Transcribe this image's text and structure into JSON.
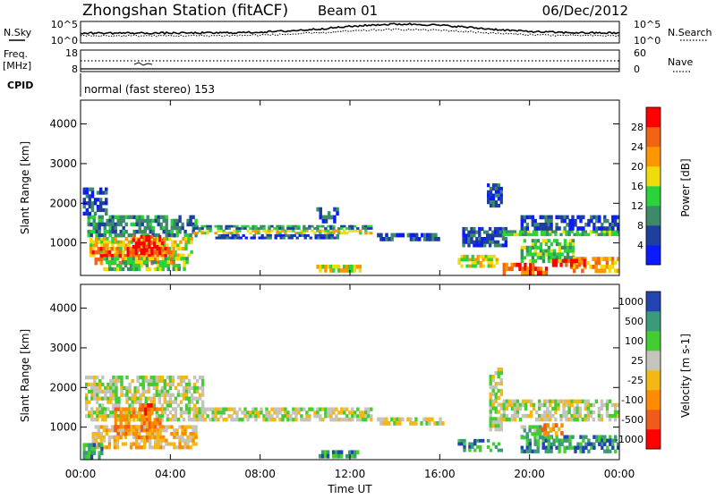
{
  "header": {
    "title": "Zhongshan Station (fitACF)",
    "beam": "Beam 01",
    "date": "06/Dec/2012"
  },
  "strip_noise": {
    "left_label": "N.Sky",
    "right_label": "N.Search",
    "left_ticks": [
      "10^5",
      "10^0"
    ],
    "right_ticks": [
      "10^5",
      "10^0"
    ]
  },
  "strip_freq": {
    "left_label_1": "Freq.",
    "left_label_2": "[MHz]",
    "right_label": "Nave",
    "left_ticks": [
      "18",
      "8"
    ],
    "right_ticks": [
      "60",
      "0"
    ]
  },
  "cpid": {
    "label": "CPID",
    "mode": "normal (fast stereo) 153"
  },
  "chart_data": [
    {
      "type": "heatmap",
      "name": "power",
      "ylabel": "Slant Range [km]",
      "ytick_labels": [
        "1000",
        "2000",
        "3000",
        "4000"
      ],
      "yticks": [
        1000,
        2000,
        3000,
        4000
      ],
      "ylim": [
        180,
        4600
      ],
      "xlim": [
        0,
        24
      ],
      "colorbar_label": "Power [dB]",
      "colorbar_ticks": [
        "4",
        "8",
        "12",
        "16",
        "20",
        "24",
        "28"
      ],
      "colors": [
        "#0a1cff",
        "#1f3fa0",
        "#3c8a6a",
        "#2bd33b",
        "#f0dc0a",
        "#ff9600",
        "#f06414",
        "#ff0000"
      ],
      "blobs": [
        {
          "t0": 0.3,
          "t1": 5.2,
          "r0": 1150,
          "r1": 1700,
          "level": 2
        },
        {
          "t0": 0.4,
          "t1": 5.0,
          "r0": 650,
          "r1": 1150,
          "level": 4
        },
        {
          "t0": 0.5,
          "t1": 4.2,
          "r0": 450,
          "r1": 900,
          "level": 6
        },
        {
          "t0": 2.3,
          "t1": 3.7,
          "r0": 700,
          "r1": 1200,
          "level": 7
        },
        {
          "t0": 0.1,
          "t1": 1.2,
          "r0": 1700,
          "r1": 2400,
          "level": 1
        },
        {
          "t0": 1.0,
          "t1": 4.8,
          "r0": 300,
          "r1": 650,
          "level": 3
        },
        {
          "t0": 5.0,
          "t1": 13.0,
          "r0": 1220,
          "r1": 1340,
          "level": 4
        },
        {
          "t0": 5.0,
          "t1": 13.0,
          "r0": 1340,
          "r1": 1450,
          "level": 2
        },
        {
          "t0": 6.0,
          "t1": 11.5,
          "r0": 1100,
          "r1": 1220,
          "level": 1
        },
        {
          "t0": 10.5,
          "t1": 11.5,
          "r0": 1500,
          "r1": 1900,
          "level": 1
        },
        {
          "t0": 10.5,
          "t1": 12.5,
          "r0": 260,
          "r1": 450,
          "level": 4
        },
        {
          "t0": 13.2,
          "t1": 16.0,
          "r0": 1050,
          "r1": 1250,
          "level": 1
        },
        {
          "t0": 16.8,
          "t1": 18.6,
          "r0": 380,
          "r1": 700,
          "level": 4
        },
        {
          "t0": 17.0,
          "t1": 19.0,
          "r0": 900,
          "r1": 1400,
          "level": 1
        },
        {
          "t0": 18.1,
          "t1": 18.8,
          "r0": 1900,
          "r1": 2500,
          "level": 1
        },
        {
          "t0": 18.8,
          "t1": 20.8,
          "r0": 200,
          "r1": 500,
          "level": 6
        },
        {
          "t0": 18.8,
          "t1": 24.0,
          "r0": 1180,
          "r1": 1320,
          "level": 3
        },
        {
          "t0": 19.6,
          "t1": 24.0,
          "r0": 1320,
          "r1": 1700,
          "level": 1
        },
        {
          "t0": 19.6,
          "t1": 22.0,
          "r0": 500,
          "r1": 1100,
          "level": 3
        },
        {
          "t0": 21.8,
          "t1": 24.0,
          "r0": 250,
          "r1": 650,
          "level": 5
        },
        {
          "t0": 21.0,
          "t1": 22.5,
          "r0": 400,
          "r1": 600,
          "level": 7
        }
      ]
    },
    {
      "type": "heatmap",
      "name": "velocity",
      "ylabel": "Slant Range [km]",
      "ytick_labels": [
        "1000",
        "2000",
        "3000",
        "4000"
      ],
      "yticks": [
        1000,
        2000,
        3000,
        4000
      ],
      "ylim": [
        180,
        4600
      ],
      "xlim": [
        0,
        24
      ],
      "xlabel": "Time UT",
      "xtick_labels": [
        "00:00",
        "04:00",
        "08:00",
        "12:00",
        "16:00",
        "20:00",
        "00:00"
      ],
      "xticks": [
        0,
        4,
        8,
        12,
        16,
        20,
        24
      ],
      "colorbar_label": "Velocity [m s-1]",
      "colorbar_ticks": [
        "1000",
        "500",
        "100",
        "25",
        "-25",
        "-100",
        "-500",
        "-1000"
      ],
      "colors": [
        "#2244b0",
        "#3a9a7a",
        "#44cc33",
        "#c4c4bc",
        "#f4b814",
        "#ff8c00",
        "#f05a1a",
        "#ff0000"
      ],
      "blobs": [
        {
          "t0": 0.2,
          "t1": 5.5,
          "r0": 1150,
          "r1": 2300,
          "level": 3
        },
        {
          "t0": 5.0,
          "t1": 13.0,
          "r0": 1150,
          "r1": 1500,
          "level": 3
        },
        {
          "t0": 0.5,
          "t1": 5.2,
          "r0": 450,
          "r1": 1050,
          "level": 4
        },
        {
          "t0": 1.5,
          "t1": 3.6,
          "r0": 700,
          "r1": 1500,
          "level": 5
        },
        {
          "t0": 2.6,
          "t1": 3.2,
          "r0": 1300,
          "r1": 1600,
          "level": 6
        },
        {
          "t0": 0.1,
          "t1": 1.0,
          "r0": 200,
          "r1": 600,
          "level": 1
        },
        {
          "t0": 10.6,
          "t1": 12.4,
          "r0": 220,
          "r1": 420,
          "level": 1
        },
        {
          "t0": 13.2,
          "t1": 16.2,
          "r0": 1050,
          "r1": 1250,
          "level": 3
        },
        {
          "t0": 16.8,
          "t1": 18.8,
          "r0": 380,
          "r1": 700,
          "level": 1
        },
        {
          "t0": 18.2,
          "t1": 18.8,
          "r0": 900,
          "r1": 2500,
          "level": 3
        },
        {
          "t0": 18.8,
          "t1": 24.0,
          "r0": 1150,
          "r1": 1700,
          "level": 3
        },
        {
          "t0": 19.6,
          "t1": 24.0,
          "r0": 350,
          "r1": 800,
          "level": 1
        },
        {
          "t0": 19.6,
          "t1": 21.0,
          "r0": 700,
          "r1": 1050,
          "level": 2
        },
        {
          "t0": 20.5,
          "t1": 21.5,
          "r0": 800,
          "r1": 1100,
          "level": 5
        }
      ]
    }
  ]
}
